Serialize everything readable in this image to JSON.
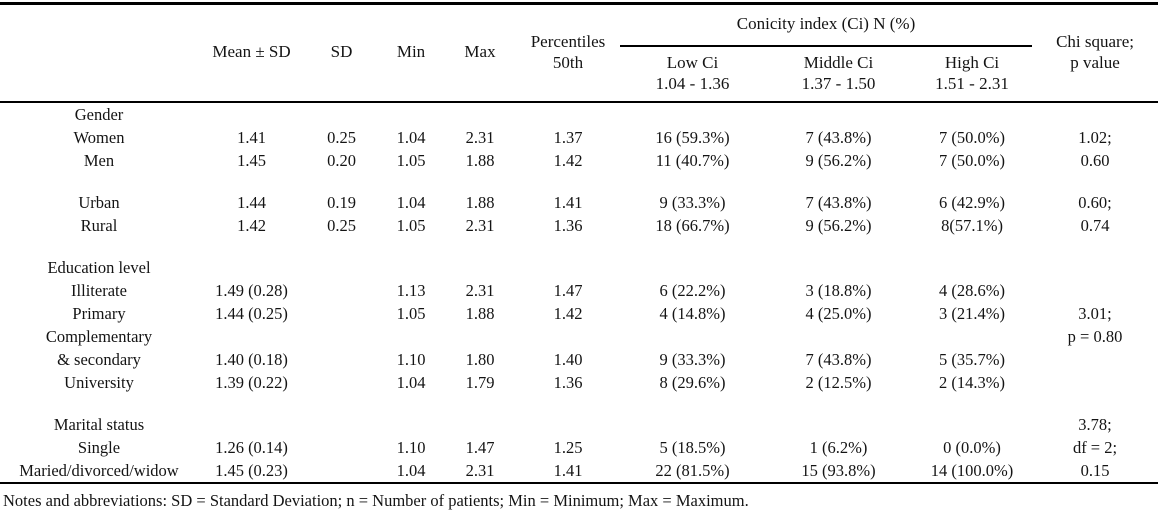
{
  "table": {
    "header": {
      "mean_sd": "Mean ± SD",
      "sd": "SD",
      "min": "Min",
      "max": "Max",
      "percentiles_line1": "Percentiles",
      "percentiles_line2": "50th",
      "conicity_group": "Conicity index (Ci) N (%)",
      "low_ci_line1": "Low Ci",
      "low_ci_line2": "1.04 - 1.36",
      "middle_ci_line1": "Middle Ci",
      "middle_ci_line2": "1.37 - 1.50",
      "high_ci_line1": "High Ci",
      "high_ci_line2": "1.51 - 2.31",
      "chi_line1": "Chi square;",
      "chi_line2": "p value"
    },
    "sections": [
      {
        "name": "gender",
        "rows": [
          [
            "Gender",
            "",
            "",
            "",
            "",
            "",
            "",
            "",
            "",
            ""
          ],
          [
            "Women",
            "1.41",
            "0.25",
            "1.04",
            "2.31",
            "1.37",
            "16 (59.3%)",
            "7 (43.8%)",
            "7 (50.0%)",
            "1.02;"
          ],
          [
            "Men",
            "1.45",
            "0.20",
            "1.05",
            "1.88",
            "1.42",
            "11 (40.7%)",
            "9 (56.2%)",
            "7 (50.0%)",
            "0.60"
          ]
        ]
      },
      {
        "name": "residence",
        "rows": [
          [
            "Urban",
            "1.44",
            "0.19",
            "1.04",
            "1.88",
            "1.41",
            "9 (33.3%)",
            "7 (43.8%)",
            "6 (42.9%)",
            "0.60;"
          ],
          [
            "Rural",
            "1.42",
            "0.25",
            "1.05",
            "2.31",
            "1.36",
            "18 (66.7%)",
            "9 (56.2%)",
            "8(57.1%)",
            "0.74"
          ]
        ]
      },
      {
        "name": "education",
        "rows": [
          [
            "Education level",
            "",
            "",
            "",
            "",
            "",
            "",
            "",
            "",
            ""
          ],
          [
            "Illiterate",
            "1.49 (0.28)",
            "",
            "1.13",
            "2.31",
            "1.47",
            "6 (22.2%)",
            "3 (18.8%)",
            "4 (28.6%)",
            ""
          ],
          [
            "Primary",
            "1.44 (0.25)",
            "",
            "1.05",
            "1.88",
            "1.42",
            "4 (14.8%)",
            "4 (25.0%)",
            "3 (21.4%)",
            "3.01;"
          ],
          [
            "Complementary",
            "",
            "",
            "",
            "",
            "",
            "",
            "",
            "",
            "p = 0.80"
          ],
          [
            "& secondary",
            "1.40 (0.18)",
            "",
            "1.10",
            "1.80",
            "1.40",
            "9 (33.3%)",
            "7 (43.8%)",
            "5 (35.7%)",
            ""
          ],
          [
            "University",
            "1.39 (0.22)",
            "",
            "1.04",
            "1.79",
            "1.36",
            "8 (29.6%)",
            "2 (12.5%)",
            "2 (14.3%)",
            ""
          ]
        ]
      },
      {
        "name": "marital",
        "rows": [
          [
            "Marital status",
            "",
            "",
            "",
            "",
            "",
            "",
            "",
            "",
            "3.78;"
          ],
          [
            "Single",
            "1.26 (0.14)",
            "",
            "1.10",
            "1.47",
            "1.25",
            "5 (18.5%)",
            "1 (6.2%)",
            "0 (0.0%)",
            "df = 2;"
          ],
          [
            "Maried/divorced/widow",
            "1.45 (0.23)",
            "",
            "1.04",
            "2.31",
            "1.41",
            "22 (81.5%)",
            "15 (93.8%)",
            "14 (100.0%)",
            "0.15"
          ]
        ]
      }
    ],
    "notes": "Notes and abbreviations: SD = Standard Deviation; n = Number of patients; Min = Minimum; Max = Maximum."
  }
}
